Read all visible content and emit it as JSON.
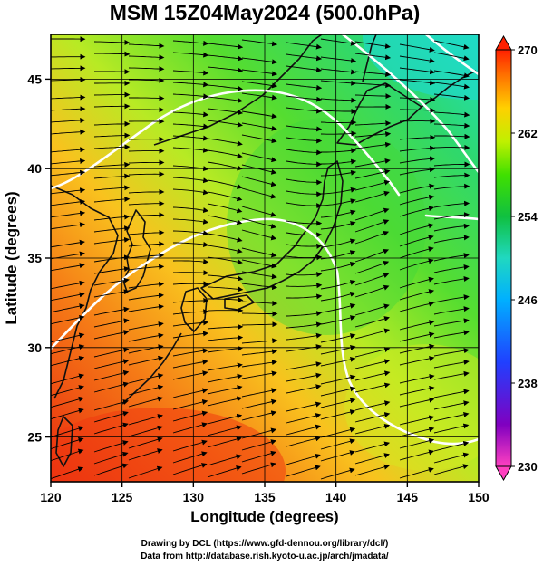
{
  "title": "MSM 15Z04May2024 (500.0hPa)",
  "x_axis": {
    "label": "Longitude (degrees)",
    "range": [
      120,
      150
    ],
    "ticks": [
      "120",
      "125",
      "130",
      "135",
      "140",
      "145",
      "150"
    ]
  },
  "y_axis": {
    "label": "Latitude  (degrees)",
    "range": [
      22.5,
      47.5
    ],
    "ticks": [
      "25",
      "30",
      "35",
      "40",
      "45"
    ]
  },
  "colorbar": {
    "range": [
      230,
      270
    ],
    "ticks": [
      "230",
      "238",
      "246",
      "254",
      "262",
      "270"
    ],
    "colors": [
      "#ff40c0",
      "#8000c0",
      "#2040ff",
      "#00b0ff",
      "#20d8c0",
      "#10c040",
      "#40e000",
      "#c0f000",
      "#ffd000",
      "#ff7000",
      "#ff2000"
    ]
  },
  "credits": {
    "line1": "Drawing by DCL (https://www.gfd-dennou.org/library/dcl/)",
    "line2": "Data from http://database.rish.kyoto-u.ac.jp/arch/jmadata/"
  },
  "field_colors": {
    "cold": "#1fe0c4",
    "cool": "#3ddc3a",
    "mild": "#b8ea24",
    "warm": "#f6a01a",
    "hot": "#f04010"
  }
}
